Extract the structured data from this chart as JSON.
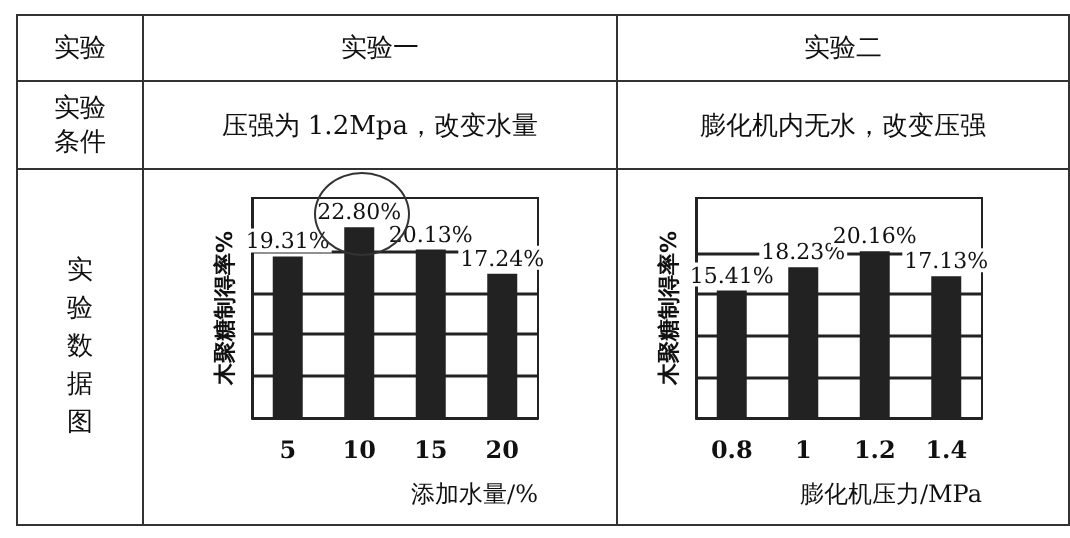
{
  "chart_data": [
    {
      "type": "other",
      "annotations": [
        "实验",
        "实验一",
        "实验二",
        "实验条件",
        "压强为 1.2Mpa，改变水量",
        "膨化机内无水，改变压强",
        "实验数据图"
      ]
    },
    {
      "type": "bar",
      "categories": [
        "5",
        "10",
        "15",
        "20"
      ],
      "values": [
        19.31,
        22.8,
        20.13,
        17.24
      ],
      "value_labels": [
        "19.31%",
        "22.80%",
        "20.13%",
        "17.24%"
      ],
      "color": "#222222",
      "xlabel": "添加水量/%",
      "ylabel": "木聚糖制得率%",
      "ylim": [
        0,
        26.3
      ],
      "yticks": [
        {
          "value": 5,
          "label": null
        },
        {
          "value": 10,
          "label": null
        },
        {
          "value": 15,
          "label": null
        },
        {
          "value": 20,
          "label": null
        }
      ],
      "tick_labels": "x",
      "grid": "y"
    },
    {
      "type": "bar",
      "categories": [
        "0.8",
        "1",
        "1.2",
        "1.4"
      ],
      "values": [
        15.41,
        18.23,
        20.16,
        17.13
      ],
      "value_labels": [
        "15.41%",
        "18.23%",
        "20.16%",
        "17.13%"
      ],
      "color": "#222222",
      "xlabel": "膨化机压力/MPa",
      "ylabel": "木聚糖制得率%",
      "ylim": [
        0,
        26.6
      ],
      "yticks": [
        {
          "value": 5,
          "label": null
        },
        {
          "value": 10,
          "label": null
        },
        {
          "value": 15,
          "label": null
        },
        {
          "value": 20,
          "label": null
        }
      ],
      "tick_labels": "x",
      "grid": "y"
    }
  ]
}
